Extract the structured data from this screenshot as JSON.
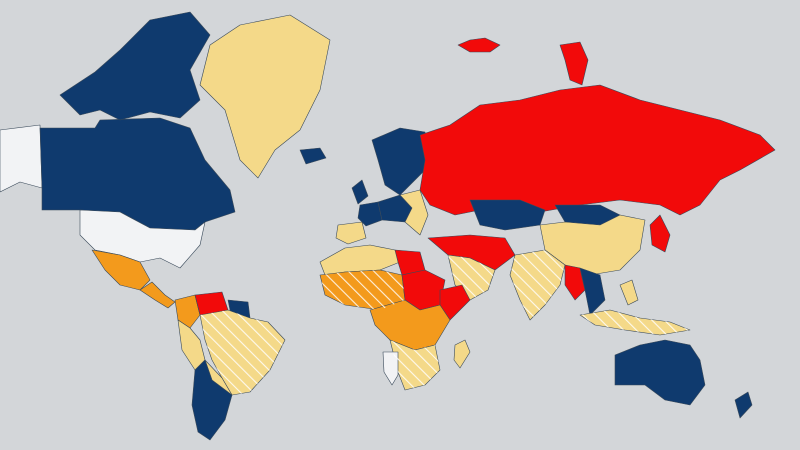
{
  "map": {
    "colors": {
      "ocean": "#d3d6d9",
      "blue": "#0f3a6e",
      "red": "#f20a0a",
      "orange": "#f39a1c",
      "beige": "#f4d989",
      "white": "#f2f3f5"
    },
    "regions": [
      {
        "name": "alaska",
        "category": "white"
      },
      {
        "name": "canada",
        "category": "blue"
      },
      {
        "name": "canadian-arctic-islands",
        "category": "blue"
      },
      {
        "name": "united-states",
        "category": "white"
      },
      {
        "name": "greenland",
        "category": "beige"
      },
      {
        "name": "iceland",
        "category": "blue"
      },
      {
        "name": "mexico",
        "category": "orange"
      },
      {
        "name": "central-america",
        "category": "orange"
      },
      {
        "name": "colombia",
        "category": "orange"
      },
      {
        "name": "venezuela",
        "category": "red"
      },
      {
        "name": "guianas",
        "category": "blue"
      },
      {
        "name": "peru",
        "category": "beige"
      },
      {
        "name": "brazil",
        "category": "beige"
      },
      {
        "name": "bolivia-paraguay",
        "category": "beige"
      },
      {
        "name": "argentina-chile",
        "category": "blue"
      },
      {
        "name": "uk-ireland",
        "category": "blue"
      },
      {
        "name": "scandinavia",
        "category": "blue"
      },
      {
        "name": "iberia",
        "category": "beige"
      },
      {
        "name": "france",
        "category": "blue"
      },
      {
        "name": "central-europe",
        "category": "blue"
      },
      {
        "name": "eastern-europe",
        "category": "beige"
      },
      {
        "name": "russia",
        "category": "red"
      },
      {
        "name": "svalbard-franz-josef",
        "category": "red"
      },
      {
        "name": "novaya-zemlya",
        "category": "red"
      },
      {
        "name": "kazakhstan",
        "category": "blue"
      },
      {
        "name": "mongolia",
        "category": "blue"
      },
      {
        "name": "china",
        "category": "beige"
      },
      {
        "name": "korea-japan",
        "category": "red"
      },
      {
        "name": "middle-east",
        "category": "red"
      },
      {
        "name": "arabia",
        "category": "beige"
      },
      {
        "name": "north-africa",
        "category": "beige"
      },
      {
        "name": "libya",
        "category": "red"
      },
      {
        "name": "sahel",
        "category": "orange"
      },
      {
        "name": "sudan-chad",
        "category": "red"
      },
      {
        "name": "horn-of-africa",
        "category": "red"
      },
      {
        "name": "central-africa",
        "category": "orange"
      },
      {
        "name": "southern-africa",
        "category": "beige"
      },
      {
        "name": "namibia",
        "category": "white"
      },
      {
        "name": "madagascar",
        "category": "beige"
      },
      {
        "name": "india",
        "category": "beige"
      },
      {
        "name": "myanmar",
        "category": "red"
      },
      {
        "name": "indochina",
        "category": "blue"
      },
      {
        "name": "indonesia",
        "category": "beige"
      },
      {
        "name": "philippines",
        "category": "beige"
      },
      {
        "name": "australia",
        "category": "blue"
      },
      {
        "name": "new-zealand",
        "category": "blue"
      }
    ]
  }
}
